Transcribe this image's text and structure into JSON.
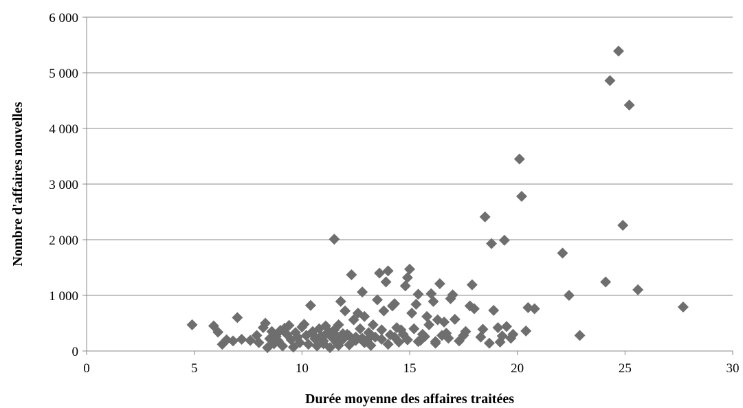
{
  "chart_data": {
    "type": "scatter",
    "xlabel": "Durée moyenne des affaires traitées",
    "ylabel": "Nombre d'affaires nouvelles",
    "xlim": [
      0,
      30
    ],
    "ylim": [
      0,
      6000
    ],
    "x_ticks": [
      0,
      5,
      10,
      15,
      20,
      25,
      30
    ],
    "x_tick_labels": [
      "0",
      "5",
      "10",
      "15",
      "20",
      "25",
      "30"
    ],
    "y_ticks": [
      0,
      1000,
      2000,
      3000,
      4000,
      5000,
      6000
    ],
    "y_tick_labels": [
      "0",
      "1 000",
      "2 000",
      "3 000",
      "4 000",
      "5 000",
      "6 000"
    ],
    "grid": "horizontal",
    "marker": "diamond",
    "color": "#6e6e6e",
    "series": [
      {
        "points": [
          [
            4.9,
            470
          ],
          [
            5.9,
            450
          ],
          [
            6.1,
            340
          ],
          [
            6.3,
            120
          ],
          [
            6.5,
            200
          ],
          [
            6.8,
            180
          ],
          [
            7.0,
            600
          ],
          [
            7.2,
            210
          ],
          [
            7.6,
            190
          ],
          [
            7.9,
            280
          ],
          [
            8.0,
            150
          ],
          [
            8.2,
            420
          ],
          [
            8.3,
            500
          ],
          [
            8.4,
            60
          ],
          [
            8.5,
            220
          ],
          [
            8.6,
            350
          ],
          [
            8.7,
            130
          ],
          [
            8.8,
            260
          ],
          [
            8.9,
            180
          ],
          [
            9.0,
            370
          ],
          [
            9.1,
            90
          ],
          [
            9.2,
            410
          ],
          [
            9.3,
            300
          ],
          [
            9.4,
            460
          ],
          [
            9.5,
            200
          ],
          [
            9.6,
            70
          ],
          [
            9.7,
            330
          ],
          [
            9.8,
            250
          ],
          [
            9.9,
            150
          ],
          [
            10.0,
            430
          ],
          [
            10.1,
            480
          ],
          [
            10.2,
            280
          ],
          [
            10.3,
            120
          ],
          [
            10.4,
            820
          ],
          [
            10.5,
            350
          ],
          [
            10.6,
            220
          ],
          [
            10.7,
            90
          ],
          [
            10.8,
            400
          ],
          [
            10.9,
            270
          ],
          [
            11.0,
            180
          ],
          [
            11.1,
            450
          ],
          [
            11.2,
            320
          ],
          [
            11.3,
            60
          ],
          [
            11.4,
            240
          ],
          [
            11.5,
            2010
          ],
          [
            11.5,
            380
          ],
          [
            11.6,
            150
          ],
          [
            11.7,
            470
          ],
          [
            11.8,
            890
          ],
          [
            11.9,
            210
          ],
          [
            12.0,
            720
          ],
          [
            12.1,
            300
          ],
          [
            12.2,
            110
          ],
          [
            12.3,
            1370
          ],
          [
            12.4,
            560
          ],
          [
            12.5,
            250
          ],
          [
            12.6,
            680
          ],
          [
            12.7,
            400
          ],
          [
            12.8,
            1060
          ],
          [
            12.9,
            620
          ],
          [
            13.0,
            180
          ],
          [
            13.1,
            330
          ],
          [
            13.2,
            100
          ],
          [
            13.3,
            470
          ],
          [
            13.4,
            250
          ],
          [
            13.5,
            920
          ],
          [
            13.6,
            1400
          ],
          [
            13.7,
            380
          ],
          [
            13.8,
            720
          ],
          [
            13.9,
            1240
          ],
          [
            14.0,
            1440
          ],
          [
            14.1,
            290
          ],
          [
            14.2,
            810
          ],
          [
            14.3,
            850
          ],
          [
            14.4,
            420
          ],
          [
            14.5,
            160
          ],
          [
            14.6,
            380
          ],
          [
            14.7,
            300
          ],
          [
            14.8,
            1170
          ],
          [
            14.9,
            1320
          ],
          [
            15.0,
            1470
          ],
          [
            15.1,
            680
          ],
          [
            15.2,
            400
          ],
          [
            15.3,
            840
          ],
          [
            15.4,
            1020
          ],
          [
            15.5,
            190
          ],
          [
            15.6,
            300
          ],
          [
            15.8,
            620
          ],
          [
            15.9,
            470
          ],
          [
            16.0,
            1030
          ],
          [
            16.1,
            890
          ],
          [
            16.2,
            170
          ],
          [
            16.3,
            560
          ],
          [
            16.4,
            1210
          ],
          [
            16.5,
            280
          ],
          [
            16.6,
            520
          ],
          [
            16.7,
            320
          ],
          [
            16.9,
            940
          ],
          [
            17.0,
            1010
          ],
          [
            17.1,
            570
          ],
          [
            17.3,
            180
          ],
          [
            17.5,
            280
          ],
          [
            17.8,
            810
          ],
          [
            17.9,
            1190
          ],
          [
            18.0,
            760
          ],
          [
            18.3,
            250
          ],
          [
            18.4,
            390
          ],
          [
            18.5,
            2410
          ],
          [
            18.7,
            140
          ],
          [
            18.8,
            1930
          ],
          [
            18.9,
            730
          ],
          [
            19.1,
            420
          ],
          [
            19.3,
            270
          ],
          [
            19.4,
            1990
          ],
          [
            19.5,
            440
          ],
          [
            19.7,
            230
          ],
          [
            20.1,
            3450
          ],
          [
            20.2,
            2780
          ],
          [
            20.4,
            360
          ],
          [
            20.5,
            780
          ],
          [
            20.8,
            760
          ],
          [
            22.1,
            1760
          ],
          [
            22.4,
            1000
          ],
          [
            22.9,
            280
          ],
          [
            24.1,
            1240
          ],
          [
            24.3,
            4860
          ],
          [
            24.7,
            5390
          ],
          [
            24.9,
            2260
          ],
          [
            25.2,
            4420
          ],
          [
            25.6,
            1100
          ],
          [
            27.7,
            790
          ],
          [
            10.6,
            260
          ],
          [
            10.9,
            210
          ],
          [
            11.1,
            300
          ],
          [
            11.3,
            330
          ],
          [
            11.6,
            280
          ],
          [
            11.9,
            310
          ],
          [
            12.2,
            270
          ],
          [
            12.5,
            190
          ],
          [
            12.8,
            230
          ],
          [
            13.2,
            270
          ],
          [
            13.7,
            210
          ],
          [
            14.3,
            250
          ],
          [
            14.9,
            200
          ],
          [
            15.7,
            260
          ],
          [
            16.8,
            230
          ],
          [
            17.6,
            350
          ],
          [
            19.2,
            160
          ],
          [
            19.8,
            300
          ],
          [
            11.0,
            130
          ],
          [
            11.7,
            100
          ],
          [
            12.9,
            150
          ],
          [
            14.0,
            120
          ],
          [
            15.4,
            170
          ],
          [
            16.2,
            140
          ]
        ]
      }
    ]
  }
}
